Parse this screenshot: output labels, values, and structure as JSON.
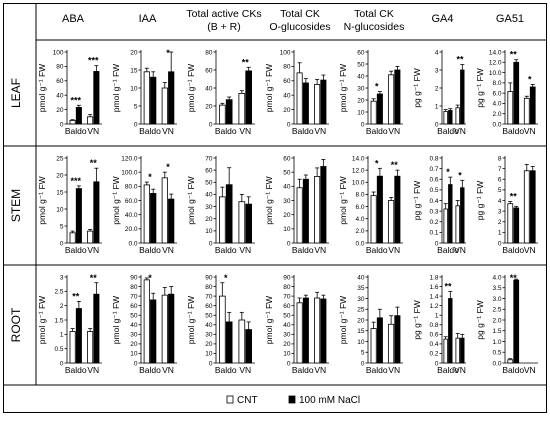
{
  "figure": {
    "columns": [
      {
        "key": "aba",
        "title": "ABA"
      },
      {
        "key": "iaa",
        "title": "IAA"
      },
      {
        "key": "tck",
        "title": "Total active CKs",
        "subtitle": "(B + R)"
      },
      {
        "key": "ckog",
        "title": "Total CK",
        "subtitle": "O-glucosides"
      },
      {
        "key": "ckng",
        "title": "Total CK",
        "subtitle": "N-glucosides"
      },
      {
        "key": "ga4",
        "title": "GA4"
      },
      {
        "key": "ga51",
        "title": "GA51"
      }
    ],
    "rows": [
      {
        "key": "leaf",
        "label": "LEAF"
      },
      {
        "key": "stem",
        "label": "STEM"
      },
      {
        "key": "root",
        "label": "ROOT"
      }
    ],
    "categories": [
      "Baldo",
      "VN"
    ],
    "legend": {
      "cnt": "CNT",
      "nacl": "100 mM NaCl"
    },
    "colors": {
      "cnt": "#ffffff",
      "nacl": "#000000",
      "stroke": "#000000"
    }
  },
  "chart_data": [
    {
      "type": "bar",
      "row": "LEAF",
      "column": "ABA",
      "ylabel": "pmol g⁻¹ FW",
      "ylim": [
        0,
        100
      ],
      "yticks": [
        "0",
        "20",
        "40",
        "60",
        "80",
        "100"
      ],
      "categories": [
        "Baldo",
        "VN"
      ],
      "series": [
        {
          "name": "CNT",
          "values": [
            5,
            10
          ],
          "errors": [
            1,
            3
          ]
        },
        {
          "name": "100 mM NaCl",
          "values": [
            23,
            73
          ],
          "errors": [
            3,
            8
          ]
        }
      ],
      "annotations": [
        "***",
        "***"
      ]
    },
    {
      "type": "bar",
      "row": "LEAF",
      "column": "IAA",
      "ylabel": "pmol g⁻¹ FW",
      "ylim": [
        0,
        20
      ],
      "yticks": [
        "0",
        "5",
        "10",
        "15",
        "20"
      ],
      "categories": [
        "Baldo",
        "VN"
      ],
      "series": [
        {
          "name": "CNT",
          "values": [
            14.5,
            10
          ],
          "errors": [
            1,
            1.5
          ]
        },
        {
          "name": "100 mM NaCl",
          "values": [
            13,
            14.5
          ],
          "errors": [
            1.5,
            5.5
          ]
        }
      ],
      "annotations": [
        "",
        "*"
      ]
    },
    {
      "type": "bar",
      "row": "LEAF",
      "column": "Total active CKs (B + R)",
      "ylabel": "pmol g⁻¹ FW",
      "ylim": [
        0,
        80
      ],
      "yticks": [
        "0",
        "20",
        "40",
        "60",
        "80"
      ],
      "categories": [
        "Baldo",
        "VN"
      ],
      "series": [
        {
          "name": "CNT",
          "values": [
            21,
            34
          ],
          "errors": [
            2,
            3
          ]
        },
        {
          "name": "100 mM NaCl",
          "values": [
            27,
            59
          ],
          "errors": [
            3,
            4
          ]
        }
      ],
      "annotations": [
        "",
        "**"
      ]
    },
    {
      "type": "bar",
      "row": "LEAF",
      "column": "Total CK O-glucosides",
      "ylabel": "pmol g⁻¹ FW",
      "ylim": [
        0,
        100
      ],
      "yticks": [
        "0",
        "20",
        "40",
        "60",
        "80",
        "100"
      ],
      "categories": [
        "Baldo",
        "VN"
      ],
      "series": [
        {
          "name": "CNT",
          "values": [
            71,
            55
          ],
          "errors": [
            14,
            7
          ]
        },
        {
          "name": "100 mM NaCl",
          "values": [
            57,
            61
          ],
          "errors": [
            6,
            7
          ]
        }
      ],
      "annotations": [
        "",
        ""
      ]
    },
    {
      "type": "bar",
      "row": "LEAF",
      "column": "Total CK N-glucosides",
      "ylabel": "pmol g⁻¹ FW",
      "ylim": [
        0,
        60
      ],
      "yticks": [
        "0",
        "10",
        "20",
        "30",
        "40",
        "50",
        "60"
      ],
      "categories": [
        "Baldo",
        "VN"
      ],
      "series": [
        {
          "name": "CNT",
          "values": [
            19,
            41
          ],
          "errors": [
            2,
            3
          ]
        },
        {
          "name": "100 mM NaCl",
          "values": [
            25,
            45
          ],
          "errors": [
            2,
            3
          ]
        }
      ],
      "annotations": [
        "*",
        ""
      ]
    },
    {
      "type": "bar",
      "row": "LEAF",
      "column": "GA4",
      "ylabel": "pg g⁻¹ FW",
      "ylim": [
        0,
        4
      ],
      "yticks": [
        "0",
        "1",
        "2",
        "3",
        "4"
      ],
      "categories": [
        "Baldo",
        "VN"
      ],
      "series": [
        {
          "name": "CNT",
          "values": [
            0.7,
            0.9
          ],
          "errors": [
            0.1,
            0.15
          ]
        },
        {
          "name": "100 mM NaCl",
          "values": [
            0.75,
            3
          ],
          "errors": [
            0.1,
            0.3
          ]
        }
      ],
      "annotations": [
        "",
        "**"
      ]
    },
    {
      "type": "bar",
      "row": "LEAF",
      "column": "GA51",
      "ylabel": "pg g⁻¹ FW",
      "ylim": [
        0,
        14
      ],
      "yticks": [
        "0.0",
        "2.0",
        "4.0",
        "6.0",
        "8.0",
        "10.0",
        "12.0",
        "14.0"
      ],
      "categories": [
        "Baldo",
        "VN"
      ],
      "series": [
        {
          "name": "CNT",
          "values": [
            6.3,
            5
          ],
          "errors": [
            1.7,
            0.4
          ]
        },
        {
          "name": "100 mM NaCl",
          "values": [
            12,
            7.2
          ],
          "errors": [
            0.5,
            0.5
          ]
        }
      ],
      "annotations": [
        "**",
        "*"
      ]
    },
    {
      "type": "bar",
      "row": "STEM",
      "column": "ABA",
      "ylabel": "pmol g⁻¹ FW",
      "ylim": [
        0,
        25
      ],
      "yticks": [
        "0",
        "5",
        "10",
        "15",
        "20",
        "25"
      ],
      "categories": [
        "Baldo",
        "VN"
      ],
      "series": [
        {
          "name": "CNT",
          "values": [
            3,
            3.5
          ],
          "errors": [
            0.5,
            0.5
          ]
        },
        {
          "name": "100 mM NaCl",
          "values": [
            16,
            18
          ],
          "errors": [
            0.8,
            4
          ]
        }
      ],
      "annotations": [
        "***",
        "**"
      ]
    },
    {
      "type": "bar",
      "row": "STEM",
      "column": "IAA",
      "ylabel": "pmol g⁻¹ FW",
      "ylim": [
        0,
        120
      ],
      "yticks": [
        "0.0",
        "20.0",
        "40.0",
        "60.0",
        "80.0",
        "100.0",
        "120.0"
      ],
      "categories": [
        "Baldo",
        "VN"
      ],
      "series": [
        {
          "name": "CNT",
          "values": [
            82,
            92
          ],
          "errors": [
            4,
            8
          ]
        },
        {
          "name": "100 mM NaCl",
          "values": [
            70,
            62
          ],
          "errors": [
            6,
            7
          ]
        }
      ],
      "annotations": [
        "*",
        "*"
      ]
    },
    {
      "type": "bar",
      "row": "STEM",
      "column": "Total active CKs (B + R)",
      "ylabel": "pmol g⁻¹ FW",
      "ylim": [
        0,
        70
      ],
      "yticks": [
        "0",
        "10",
        "20",
        "30",
        "40",
        "50",
        "60",
        "70"
      ],
      "categories": [
        "Baldo",
        "VN"
      ],
      "series": [
        {
          "name": "CNT",
          "values": [
            38,
            34
          ],
          "errors": [
            8,
            6
          ]
        },
        {
          "name": "100 mM NaCl",
          "values": [
            48,
            32
          ],
          "errors": [
            14,
            6
          ]
        }
      ],
      "annotations": [
        "",
        ""
      ]
    },
    {
      "type": "bar",
      "row": "STEM",
      "column": "Total CK O-glucosides",
      "ylabel": "pmol g⁻¹ FW",
      "ylim": [
        0,
        60
      ],
      "yticks": [
        "0",
        "10",
        "20",
        "30",
        "40",
        "50",
        "60"
      ],
      "categories": [
        "Baldo",
        "VN"
      ],
      "series": [
        {
          "name": "CNT",
          "values": [
            39,
            47
          ],
          "errors": [
            6,
            6
          ]
        },
        {
          "name": "100 mM NaCl",
          "values": [
            45,
            54
          ],
          "errors": [
            3,
            5
          ]
        }
      ],
      "annotations": [
        "",
        ""
      ]
    },
    {
      "type": "bar",
      "row": "STEM",
      "column": "Total CK N-glucosides",
      "ylabel": "pmol g⁻¹ FW",
      "ylim": [
        0,
        14
      ],
      "yticks": [
        "0.0",
        "2.0",
        "4.0",
        "6.0",
        "8.0",
        "10.0",
        "12.0",
        "14.0"
      ],
      "categories": [
        "Baldo",
        "VN"
      ],
      "series": [
        {
          "name": "CNT",
          "values": [
            7.8,
            7
          ],
          "errors": [
            0.6,
            0.5
          ]
        },
        {
          "name": "100 mM NaCl",
          "values": [
            11,
            11
          ],
          "errors": [
            1.3,
            1
          ]
        }
      ],
      "annotations": [
        "*",
        "**"
      ]
    },
    {
      "type": "bar",
      "row": "STEM",
      "column": "GA4",
      "ylabel": "pg g⁻¹ FW",
      "ylim": [
        0,
        0.8
      ],
      "yticks": [
        "0",
        "0.1",
        "0.2",
        "0.3",
        "0.4",
        "0.5",
        "0.6",
        "0.7",
        "0.8"
      ],
      "categories": [
        "Baldo",
        "VN"
      ],
      "series": [
        {
          "name": "CNT",
          "values": [
            0.32,
            0.35
          ],
          "errors": [
            0.05,
            0.05
          ]
        },
        {
          "name": "100 mM NaCl",
          "values": [
            0.55,
            0.52
          ],
          "errors": [
            0.07,
            0.07
          ]
        }
      ],
      "annotations": [
        "*",
        "*"
      ]
    },
    {
      "type": "bar",
      "row": "STEM",
      "column": "GA51",
      "ylabel": "pg g⁻¹ FW",
      "ylim": [
        0,
        8
      ],
      "yticks": [
        "0",
        "1",
        "2",
        "3",
        "4",
        "5",
        "6",
        "7",
        "8"
      ],
      "categories": [
        "Baldo",
        "VN"
      ],
      "series": [
        {
          "name": "CNT",
          "values": [
            3.7,
            6.8
          ],
          "errors": [
            0.2,
            0.6
          ]
        },
        {
          "name": "100 mM NaCl",
          "values": [
            3.3,
            6.8
          ],
          "errors": [
            0.15,
            0.4
          ]
        }
      ],
      "annotations": [
        "**",
        ""
      ]
    },
    {
      "type": "bar",
      "row": "ROOT",
      "column": "ABA",
      "ylabel": "pmol g⁻¹ FW",
      "ylim": [
        0,
        3
      ],
      "yticks": [
        "0",
        "0.5",
        "1",
        "1.5",
        "2",
        "2.5",
        "3"
      ],
      "categories": [
        "Baldo",
        "VN"
      ],
      "series": [
        {
          "name": "CNT",
          "values": [
            1.1,
            1.1
          ],
          "errors": [
            0.1,
            0.1
          ]
        },
        {
          "name": "100 mM NaCl",
          "values": [
            1.9,
            2.4
          ],
          "errors": [
            0.25,
            0.4
          ]
        }
      ],
      "annotations": [
        "**",
        "**"
      ]
    },
    {
      "type": "bar",
      "row": "ROOT",
      "column": "IAA",
      "ylabel": "pmol g⁻¹ FW",
      "ylim": [
        0,
        90
      ],
      "yticks": [
        "0",
        "10",
        "20",
        "30",
        "40",
        "50",
        "60",
        "70",
        "80",
        "90"
      ],
      "categories": [
        "Baldo",
        "VN"
      ],
      "series": [
        {
          "name": "CNT",
          "values": [
            87,
            71
          ],
          "errors": [
            2,
            8
          ]
        },
        {
          "name": "100 mM NaCl",
          "values": [
            66,
            72
          ],
          "errors": [
            7,
            8
          ]
        }
      ],
      "annotations": [
        "*",
        ""
      ]
    },
    {
      "type": "bar",
      "row": "ROOT",
      "column": "Total active CKs (B + R)",
      "ylabel": "pmol g⁻¹ FW",
      "ylim": [
        0,
        90
      ],
      "yticks": [
        "0",
        "10",
        "20",
        "30",
        "40",
        "50",
        "60",
        "70",
        "80",
        "90"
      ],
      "categories": [
        "Baldo",
        "VN"
      ],
      "series": [
        {
          "name": "CNT",
          "values": [
            70,
            45
          ],
          "errors": [
            14,
            8
          ]
        },
        {
          "name": "100 mM NaCl",
          "values": [
            43,
            35
          ],
          "errors": [
            10,
            8
          ]
        }
      ],
      "annotations": [
        "*",
        ""
      ]
    },
    {
      "type": "bar",
      "row": "ROOT",
      "column": "Total CK O-glucosides",
      "ylabel": "pmol g⁻¹ FW",
      "ylim": [
        0,
        90
      ],
      "yticks": [
        "0",
        "10",
        "20",
        "30",
        "40",
        "50",
        "60",
        "70",
        "80",
        "90"
      ],
      "categories": [
        "Baldo",
        "VN"
      ],
      "series": [
        {
          "name": "CNT",
          "values": [
            63,
            68
          ],
          "errors": [
            5,
            6
          ]
        },
        {
          "name": "100 mM NaCl",
          "values": [
            68,
            67
          ],
          "errors": [
            3,
            4
          ]
        }
      ],
      "annotations": [
        "",
        ""
      ]
    },
    {
      "type": "bar",
      "row": "ROOT",
      "column": "Total CK N-glucosides",
      "ylabel": "pmol g⁻¹ FW",
      "ylim": [
        0,
        40
      ],
      "yticks": [
        "0",
        "5",
        "10",
        "15",
        "20",
        "25",
        "30",
        "35",
        "40"
      ],
      "categories": [
        "Baldo",
        "VN"
      ],
      "series": [
        {
          "name": "CNT",
          "values": [
            16,
            18
          ],
          "errors": [
            3,
            4
          ]
        },
        {
          "name": "100 mM NaCl",
          "values": [
            21,
            22
          ],
          "errors": [
            4,
            4
          ]
        }
      ],
      "annotations": [
        "",
        ""
      ]
    },
    {
      "type": "bar",
      "row": "ROOT",
      "column": "GA4",
      "ylabel": "pg g⁻¹ FW",
      "ylim": [
        0,
        1.8
      ],
      "yticks": [
        "0",
        "0.2",
        "0.4",
        "0.6",
        "0.8",
        "1",
        "1.2",
        "1.4",
        "1.6",
        "1.8"
      ],
      "categories": [
        "Baldo",
        "VN"
      ],
      "series": [
        {
          "name": "CNT",
          "values": [
            0.5,
            0.52
          ],
          "errors": [
            0.05,
            0.1
          ]
        },
        {
          "name": "100 mM NaCl",
          "values": [
            1.35,
            0.52
          ],
          "errors": [
            0.15,
            0.08
          ]
        }
      ],
      "annotations": [
        "**",
        ""
      ]
    },
    {
      "type": "bar",
      "row": "ROOT",
      "column": "GA51",
      "ylabel": "pg g⁻¹ FW",
      "ylim": [
        0,
        4
      ],
      "yticks": [
        "0.0",
        "0.5",
        "1.0",
        "1.5",
        "2.0",
        "2.5",
        "3.0",
        "3.5",
        "4.0"
      ],
      "categories": [
        "Baldo",
        "VN"
      ],
      "series": [
        {
          "name": "CNT",
          "values": [
            0.15,
            0.0
          ],
          "errors": [
            0.05,
            0
          ]
        },
        {
          "name": "100 mM NaCl",
          "values": [
            3.85,
            0.0
          ],
          "errors": [
            0.05,
            0
          ]
        }
      ],
      "annotations": [
        "**",
        ""
      ]
    }
  ]
}
